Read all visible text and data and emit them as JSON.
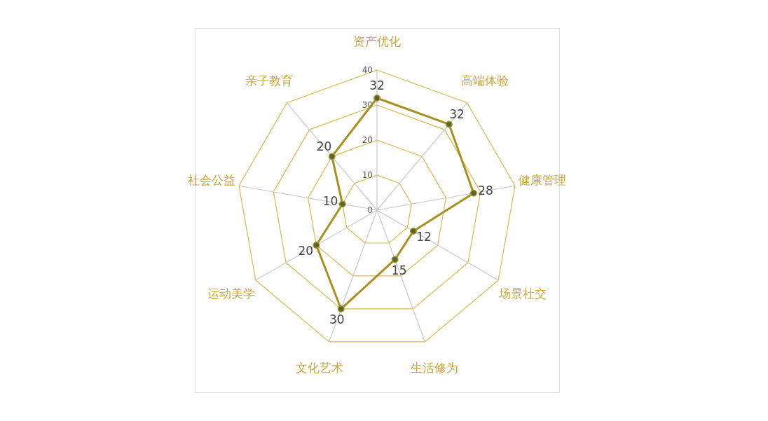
{
  "chart_data": {
    "type": "radar",
    "categories": [
      "资产优化",
      "高端体验",
      "健康管理",
      "场景社交",
      "生活修为",
      "文化艺术",
      "运动美学",
      "社会公益",
      "亲子教育"
    ],
    "series": [
      {
        "color": "#a8901e",
        "values": [
          32,
          32,
          28,
          12,
          15,
          30,
          20,
          10,
          20
        ]
      }
    ],
    "ylim": [
      0,
      40
    ],
    "yticks": [
      0,
      10,
      20,
      30,
      40
    ],
    "grid": true,
    "marker": "circle",
    "data_labels": true
  }
}
